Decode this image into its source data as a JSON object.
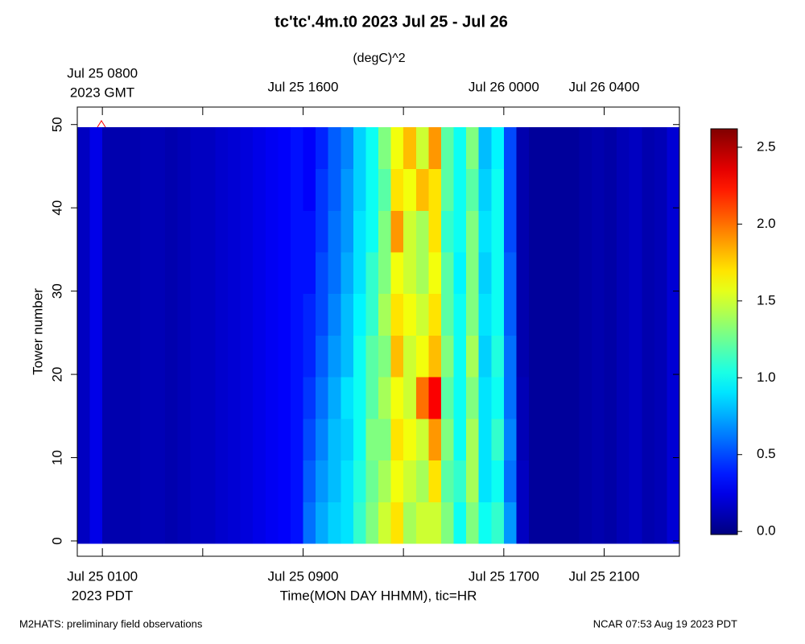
{
  "chart_data": {
    "type": "heatmap",
    "title": "tc'tc'.4m.t0 2023 Jul 25 - Jul 26",
    "subtitle": "(degC)^2",
    "ylabel": "Tower number",
    "xlabel": "Time(MON DAY HHMM), tic=HR",
    "x_zone_label": "2023 PDT",
    "top_zone_label": "2023 GMT",
    "footer_left": "M2HATS: preliminary field observations",
    "footer_right": "NCAR 07:53 Aug 19 2023 PDT",
    "colormap": "jet",
    "xlim": [
      0,
      24
    ],
    "ylim": [
      -1.84,
      52.1
    ],
    "clim": [
      -0.02,
      2.62
    ],
    "xtick_marks": [
      1,
      5,
      9,
      13,
      17,
      21
    ],
    "xticks": [
      {
        "value": 1,
        "label": "Jul 25 0100"
      },
      {
        "value": 9,
        "label": "Jul 25 0900"
      },
      {
        "value": 17,
        "label": "Jul 25 1700"
      },
      {
        "value": 21,
        "label": "Jul 25 2100"
      }
    ],
    "top_xticks": [
      {
        "value": 1,
        "label": "Jul 25 0800"
      },
      {
        "value": 9,
        "label": "Jul 25 1600"
      },
      {
        "value": 17,
        "label": "Jul 26 0000"
      },
      {
        "value": 21,
        "label": "Jul 26 0400"
      }
    ],
    "yticks": [
      0,
      10,
      20,
      30,
      40,
      50
    ],
    "cticks": [
      {
        "value": 0,
        "label": "0.0"
      },
      {
        "value": 0.5,
        "label": "0.5"
      },
      {
        "value": 1,
        "label": "1.0"
      },
      {
        "value": 1.5,
        "label": "1.5"
      },
      {
        "value": 2,
        "label": "2.0"
      },
      {
        "value": 2.5,
        "label": "2.5"
      }
    ],
    "x_edges": [
      0,
      0.5,
      1,
      1.5,
      2,
      2.5,
      3,
      3.5,
      4,
      4.5,
      5,
      5.5,
      6,
      6.5,
      7,
      7.5,
      8,
      8.5,
      9,
      9.5,
      10,
      10.5,
      11,
      11.5,
      12,
      12.5,
      13,
      13.5,
      14,
      14.5,
      15,
      15.5,
      16,
      16.5,
      17,
      17.5,
      18,
      18.5,
      19,
      19.5,
      20,
      20.5,
      21,
      21.5,
      22,
      22.5,
      23,
      23.5,
      24
    ],
    "y_edges": [
      -0.3,
      4.7,
      9.7,
      14.7,
      19.7,
      24.7,
      29.7,
      34.7,
      39.7,
      44.7,
      49.7
    ],
    "z": [
      [
        0.15,
        0.25,
        0.1,
        0.1,
        0.1,
        0.12,
        0.12,
        0.1,
        0.12,
        0.15,
        0.15,
        0.18,
        0.2,
        0.22,
        0.25,
        0.28,
        0.3,
        0.35,
        0.6,
        0.75,
        0.85,
        0.9,
        1.1,
        1.3,
        1.5,
        1.7,
        1.4,
        1.5,
        1.5,
        1.3,
        1.0,
        1.3,
        1.0,
        1.1,
        0.7,
        0.15,
        0.05,
        0.05,
        0.05,
        0.05,
        0.08,
        0.1,
        0.08,
        0.12,
        0.15,
        0.1,
        0.12,
        0.2
      ],
      [
        0.15,
        0.25,
        0.1,
        0.1,
        0.1,
        0.12,
        0.12,
        0.1,
        0.12,
        0.15,
        0.15,
        0.18,
        0.2,
        0.22,
        0.25,
        0.28,
        0.3,
        0.35,
        0.55,
        0.7,
        0.8,
        0.9,
        1.05,
        1.25,
        1.4,
        1.6,
        1.5,
        1.4,
        1.7,
        1.2,
        1.1,
        1.4,
        0.9,
        1.0,
        0.6,
        0.15,
        0.05,
        0.05,
        0.05,
        0.05,
        0.08,
        0.1,
        0.08,
        0.12,
        0.15,
        0.1,
        0.12,
        0.2
      ],
      [
        0.15,
        0.25,
        0.1,
        0.1,
        0.1,
        0.12,
        0.12,
        0.1,
        0.12,
        0.15,
        0.15,
        0.18,
        0.2,
        0.22,
        0.25,
        0.28,
        0.3,
        0.35,
        0.5,
        0.65,
        0.8,
        0.85,
        1.0,
        1.3,
        1.3,
        1.7,
        1.6,
        1.5,
        1.9,
        1.3,
        1.0,
        1.4,
        0.9,
        1.1,
        0.65,
        0.12,
        0.05,
        0.05,
        0.05,
        0.05,
        0.08,
        0.1,
        0.08,
        0.12,
        0.15,
        0.1,
        0.12,
        0.2
      ],
      [
        0.15,
        0.25,
        0.1,
        0.1,
        0.1,
        0.12,
        0.12,
        0.1,
        0.12,
        0.15,
        0.15,
        0.18,
        0.2,
        0.22,
        0.25,
        0.28,
        0.3,
        0.35,
        0.45,
        0.6,
        0.75,
        0.9,
        1.0,
        1.2,
        1.4,
        1.6,
        1.5,
        2.0,
        2.3,
        1.2,
        1.0,
        1.3,
        0.9,
        1.0,
        0.6,
        0.12,
        0.05,
        0.05,
        0.05,
        0.05,
        0.08,
        0.1,
        0.08,
        0.12,
        0.15,
        0.1,
        0.12,
        0.2
      ],
      [
        0.15,
        0.25,
        0.1,
        0.1,
        0.1,
        0.12,
        0.12,
        0.1,
        0.12,
        0.15,
        0.15,
        0.18,
        0.2,
        0.22,
        0.25,
        0.28,
        0.3,
        0.35,
        0.4,
        0.55,
        0.7,
        0.8,
        1.0,
        1.2,
        1.3,
        1.8,
        1.5,
        1.6,
        1.8,
        1.3,
        1.0,
        1.4,
        0.85,
        1.05,
        0.6,
        0.1,
        0.05,
        0.05,
        0.05,
        0.05,
        0.08,
        0.1,
        0.08,
        0.12,
        0.15,
        0.1,
        0.12,
        0.2
      ],
      [
        0.15,
        0.25,
        0.1,
        0.1,
        0.1,
        0.12,
        0.12,
        0.1,
        0.12,
        0.15,
        0.15,
        0.18,
        0.2,
        0.22,
        0.25,
        0.28,
        0.3,
        0.35,
        0.4,
        0.5,
        0.65,
        0.8,
        0.95,
        1.1,
        1.4,
        1.7,
        1.6,
        1.5,
        1.7,
        1.2,
        1.0,
        1.3,
        0.9,
        1.0,
        0.55,
        0.1,
        0.05,
        0.05,
        0.05,
        0.05,
        0.08,
        0.1,
        0.08,
        0.12,
        0.15,
        0.1,
        0.12,
        0.2
      ],
      [
        0.15,
        0.25,
        0.1,
        0.1,
        0.1,
        0.12,
        0.12,
        0.1,
        0.12,
        0.15,
        0.15,
        0.18,
        0.2,
        0.22,
        0.25,
        0.28,
        0.3,
        0.35,
        0.35,
        0.5,
        0.6,
        0.75,
        0.9,
        1.1,
        1.3,
        1.6,
        1.5,
        1.4,
        1.6,
        1.2,
        0.95,
        1.3,
        0.85,
        1.0,
        0.55,
        0.1,
        0.05,
        0.05,
        0.05,
        0.05,
        0.08,
        0.1,
        0.08,
        0.12,
        0.15,
        0.1,
        0.12,
        0.2
      ],
      [
        0.15,
        0.25,
        0.1,
        0.1,
        0.1,
        0.12,
        0.12,
        0.1,
        0.12,
        0.15,
        0.15,
        0.18,
        0.2,
        0.22,
        0.25,
        0.28,
        0.3,
        0.35,
        0.35,
        0.45,
        0.6,
        0.7,
        0.9,
        1.0,
        1.3,
        1.9,
        1.5,
        1.4,
        1.7,
        1.1,
        1.0,
        1.3,
        0.9,
        1.0,
        0.5,
        0.1,
        0.05,
        0.05,
        0.05,
        0.05,
        0.08,
        0.1,
        0.08,
        0.12,
        0.15,
        0.1,
        0.12,
        0.2
      ],
      [
        0.15,
        0.25,
        0.1,
        0.1,
        0.1,
        0.12,
        0.12,
        0.1,
        0.12,
        0.15,
        0.15,
        0.18,
        0.2,
        0.22,
        0.25,
        0.28,
        0.3,
        0.35,
        0.3,
        0.45,
        0.55,
        0.7,
        0.85,
        1.0,
        1.2,
        1.7,
        1.6,
        1.8,
        1.7,
        1.2,
        1.0,
        1.2,
        0.85,
        1.0,
        0.5,
        0.1,
        0.05,
        0.05,
        0.05,
        0.05,
        0.08,
        0.1,
        0.08,
        0.12,
        0.15,
        0.1,
        0.12,
        0.2
      ],
      [
        0.15,
        0.25,
        0.1,
        0.1,
        0.1,
        0.12,
        0.12,
        0.1,
        0.12,
        0.15,
        0.15,
        0.18,
        0.2,
        0.22,
        0.25,
        0.28,
        0.3,
        0.35,
        0.3,
        0.4,
        0.55,
        0.65,
        0.85,
        1.0,
        1.3,
        1.6,
        1.8,
        1.5,
        1.9,
        1.2,
        1.0,
        1.3,
        0.8,
        0.95,
        0.5,
        0.1,
        0.05,
        0.05,
        0.05,
        0.05,
        0.08,
        0.1,
        0.08,
        0.12,
        0.15,
        0.1,
        0.12,
        0.2
      ]
    ]
  }
}
